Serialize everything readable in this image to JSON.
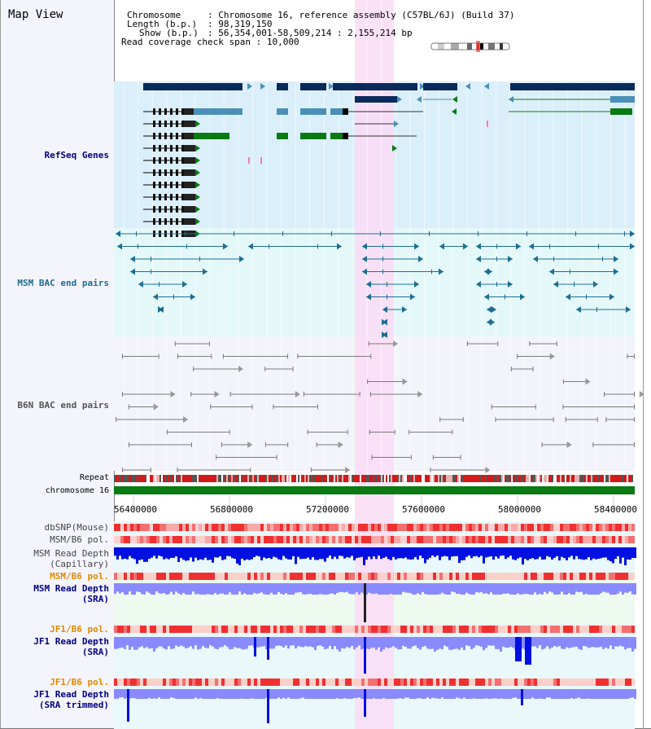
{
  "view_title": "Map View",
  "header": {
    "chromosome_key": "Chromosome",
    "chromosome_val": "Chromosome 16, reference assembly (C57BL/6J) (Build 37)",
    "length_key": "Length (b.p.)",
    "length_val": "98,319,150",
    "show_key": "Show (b.p.)",
    "show_val": "56,354,001-58,509,214 : 2,155,214 bp",
    "coverage_key": "Read coverage check span",
    "coverage_val": "10,000"
  },
  "tracks": {
    "refseq": "RefSeq Genes",
    "msm_bac": "MSM BAC end pairs",
    "b6n_bac": "B6N BAC end pairs",
    "repeat": "Repeat",
    "chromosome": "chromosome 16",
    "dbsnp": "dbSNP(Mouse)",
    "msm_b6_pol": "MSM/B6 pol.",
    "msm_depth_cap_1": "MSM Read Depth",
    "msm_depth_cap_2": "(Capillary)",
    "msm_b6_pol_2": "MSM/B6 pol.",
    "msm_depth_sra_1": "MSM Read Depth",
    "msm_depth_sra_2": "(SRA)",
    "jf1_b6_pol": "JF1/B6 pol.",
    "jf1_depth_sra_1": "JF1 Read Depth",
    "jf1_depth_sra_2": "(SRA)",
    "jf1_b6_pol_2": "JF1/B6 pol.",
    "jf1_depth_trim_1": "JF1 Read Depth",
    "jf1_depth_trim_2": "(SRA trimmed)"
  },
  "ruler_ticks": [
    "56400000",
    "56800000",
    "57200000",
    "57600000",
    "58000000",
    "58400000"
  ],
  "colors": {
    "refseq_bg": "#dbeffa",
    "msm_bg": "#e4f8fa",
    "b6n_bg": "#f3f4fb",
    "highlight": "#fadcf4",
    "gene_dark": "#0b2a5c",
    "gene_mid": "#4b8fb8",
    "gene_green": "#0a7a12",
    "msm_pair": "#1e6e93",
    "b6n_pair": "#7a7a7a",
    "chromosome_bar": "#0a7a12",
    "repeat_red": "#d21a1a",
    "depth_dark_blue": "#0010e0",
    "depth_light_blue": "#8a8aff",
    "pol_red": "#f04040",
    "label_navy": "#000080",
    "label_orange": "#e08a00"
  }
}
